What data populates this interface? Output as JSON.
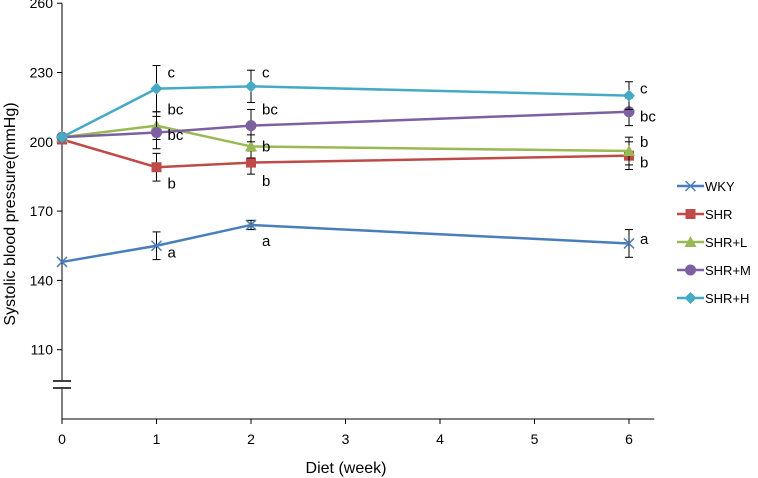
{
  "chart_data": {
    "type": "line",
    "xlabel": "Diet (week)",
    "ylabel": "Systolic blood pressure(mmHg)",
    "x": [
      0,
      1,
      2,
      6
    ],
    "x_ticks": [
      0,
      1,
      2,
      3,
      4,
      5,
      6
    ],
    "x_tick_labels": [
      "0",
      "1",
      "2",
      "3",
      "4",
      "5",
      "6"
    ],
    "y_ticks": [
      110,
      140,
      170,
      200,
      230,
      260
    ],
    "y_tick_labels": [
      "110",
      "140",
      "170",
      "200",
      "230",
      "260"
    ],
    "xlim": [
      0,
      6.5
    ],
    "ylim": [
      80,
      260
    ],
    "y_axis_break": true,
    "legend_position": "right",
    "series": [
      {
        "name": "WKY",
        "color": "#4a7ebb",
        "marker": "x",
        "values": [
          148,
          155,
          164,
          156
        ],
        "error": [
          0,
          6,
          2,
          6
        ]
      },
      {
        "name": "SHR",
        "color": "#be4b48",
        "marker": "square",
        "values": [
          201,
          189,
          191,
          194
        ],
        "error": [
          0,
          6,
          5,
          6
        ]
      },
      {
        "name": "SHR+L",
        "color": "#98b954",
        "marker": "triangle",
        "values": [
          202,
          207,
          198,
          196
        ],
        "error": [
          0,
          6,
          5,
          6
        ]
      },
      {
        "name": "SHR+M",
        "color": "#7d60a0",
        "marker": "circle",
        "values": [
          202,
          204,
          207,
          213
        ],
        "error": [
          0,
          7,
          7,
          6
        ]
      },
      {
        "name": "SHR+H",
        "color": "#46aac5",
        "marker": "diamond",
        "values": [
          202,
          223,
          224,
          220
        ],
        "error": [
          0,
          10,
          7,
          6
        ]
      }
    ],
    "annotations": [
      {
        "text": "c",
        "x": 1,
        "y": 230
      },
      {
        "text": "bc",
        "x": 1,
        "y": 214
      },
      {
        "text": "bc",
        "x": 1,
        "y": 203
      },
      {
        "text": "b",
        "x": 1,
        "y": 182
      },
      {
        "text": "a",
        "x": 1,
        "y": 152
      },
      {
        "text": "c",
        "x": 2,
        "y": 230
      },
      {
        "text": "bc",
        "x": 2,
        "y": 214
      },
      {
        "text": "b",
        "x": 2,
        "y": 198
      },
      {
        "text": "b",
        "x": 2,
        "y": 183
      },
      {
        "text": "a",
        "x": 2,
        "y": 157
      },
      {
        "text": "c",
        "x": 6,
        "y": 223
      },
      {
        "text": "bc",
        "x": 6,
        "y": 211
      },
      {
        "text": "b",
        "x": 6,
        "y": 200
      },
      {
        "text": "b",
        "x": 6,
        "y": 191
      },
      {
        "text": "a",
        "x": 6,
        "y": 158
      }
    ]
  }
}
